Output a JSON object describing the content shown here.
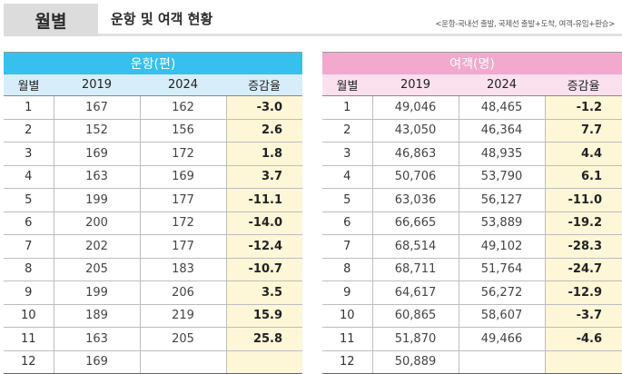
{
  "header": {
    "tab_label": "월별",
    "title": "운항 및 여객 현황",
    "note": "<운항-국내선 출발, 국제선 출발+도착, 여객-유임+환승>"
  },
  "operations": {
    "group_title": "운항(편)",
    "columns": [
      "월별",
      "2019",
      "2024",
      "증감율"
    ],
    "rows": [
      {
        "month": "1",
        "y2019": "167",
        "y2024": "162",
        "rate": "-3.0"
      },
      {
        "month": "2",
        "y2019": "152",
        "y2024": "156",
        "rate": "2.6"
      },
      {
        "month": "3",
        "y2019": "169",
        "y2024": "172",
        "rate": "1.8"
      },
      {
        "month": "4",
        "y2019": "163",
        "y2024": "169",
        "rate": "3.7"
      },
      {
        "month": "5",
        "y2019": "199",
        "y2024": "177",
        "rate": "-11.1"
      },
      {
        "month": "6",
        "y2019": "200",
        "y2024": "172",
        "rate": "-14.0"
      },
      {
        "month": "7",
        "y2019": "202",
        "y2024": "177",
        "rate": "-12.4"
      },
      {
        "month": "8",
        "y2019": "205",
        "y2024": "183",
        "rate": "-10.7"
      },
      {
        "month": "9",
        "y2019": "199",
        "y2024": "206",
        "rate": "3.5"
      },
      {
        "month": "10",
        "y2019": "189",
        "y2024": "219",
        "rate": "15.9"
      },
      {
        "month": "11",
        "y2019": "163",
        "y2024": "205",
        "rate": "25.8"
      },
      {
        "month": "12",
        "y2019": "169",
        "y2024": "",
        "rate": ""
      }
    ]
  },
  "passengers": {
    "group_title": "여객(명)",
    "columns": [
      "월별",
      "2019",
      "2024",
      "증감율"
    ],
    "rows": [
      {
        "month": "1",
        "y2019": "49,046",
        "y2024": "48,465",
        "rate": "-1.2"
      },
      {
        "month": "2",
        "y2019": "43,050",
        "y2024": "46,364",
        "rate": "7.7"
      },
      {
        "month": "3",
        "y2019": "46,863",
        "y2024": "48,935",
        "rate": "4.4"
      },
      {
        "month": "4",
        "y2019": "50,706",
        "y2024": "53,790",
        "rate": "6.1"
      },
      {
        "month": "5",
        "y2019": "63,036",
        "y2024": "56,127",
        "rate": "-11.0"
      },
      {
        "month": "6",
        "y2019": "66,665",
        "y2024": "53,889",
        "rate": "-19.2"
      },
      {
        "month": "7",
        "y2019": "68,514",
        "y2024": "49,102",
        "rate": "-28.3"
      },
      {
        "month": "8",
        "y2019": "68,711",
        "y2024": "51,764",
        "rate": "-24.7"
      },
      {
        "month": "9",
        "y2019": "64,617",
        "y2024": "56,272",
        "rate": "-12.9"
      },
      {
        "month": "10",
        "y2019": "60,865",
        "y2024": "58,607",
        "rate": "-3.7"
      },
      {
        "month": "11",
        "y2019": "51,870",
        "y2024": "49,466",
        "rate": "-4.6"
      },
      {
        "month": "12",
        "y2019": "50,889",
        "y2024": "",
        "rate": ""
      }
    ]
  }
}
